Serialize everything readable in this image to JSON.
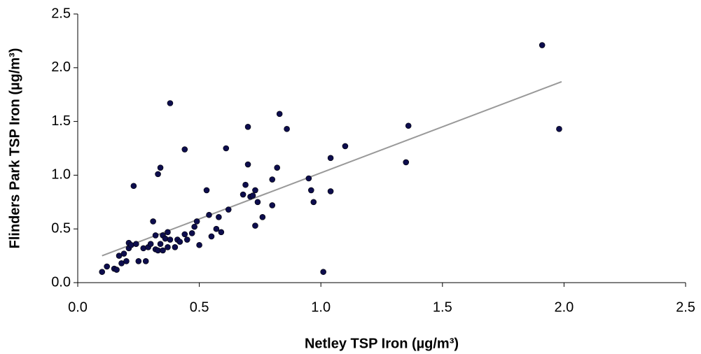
{
  "chart_data": {
    "type": "scatter",
    "x_label": "Netley TSP Iron (µg/m³)",
    "y_label": "Flinders Park TSP Iron (µg/m³)",
    "xlim": [
      0,
      2.5
    ],
    "ylim": [
      0,
      2.5
    ],
    "xticks": [
      {
        "value": 0,
        "label": "0.0"
      },
      0.5,
      {
        "value": 1,
        "label": "1.0"
      },
      1.5,
      {
        "value": 2,
        "label": "2.0"
      },
      2.5
    ],
    "yticks": [
      {
        "value": 0,
        "label": "0.0"
      },
      0.5,
      {
        "value": 1,
        "label": "1.0"
      },
      1.5,
      {
        "value": 2,
        "label": "2.0"
      },
      2.5
    ],
    "color": "#0d0d4d",
    "x": [
      0.1,
      0.12,
      0.15,
      0.16,
      0.17,
      0.18,
      0.19,
      0.2,
      0.21,
      0.21,
      0.22,
      0.23,
      0.24,
      0.25,
      0.27,
      0.28,
      0.29,
      0.3,
      0.31,
      0.32,
      0.32,
      0.33,
      0.33,
      0.34,
      0.34,
      0.35,
      0.35,
      0.36,
      0.37,
      0.37,
      0.38,
      0.38,
      0.4,
      0.41,
      0.42,
      0.44,
      0.44,
      0.45,
      0.47,
      0.48,
      0.49,
      0.5,
      0.53,
      0.54,
      0.55,
      0.57,
      0.58,
      0.59,
      0.61,
      0.62,
      0.68,
      0.69,
      0.7,
      0.7,
      0.71,
      0.72,
      0.73,
      0.73,
      0.74,
      0.76,
      0.8,
      0.8,
      0.82,
      0.83,
      0.86,
      0.95,
      0.96,
      0.97,
      1.01,
      1.04,
      1.04,
      1.1,
      1.35,
      1.36,
      1.91,
      1.98
    ],
    "values": [
      0.1,
      0.15,
      0.13,
      0.12,
      0.25,
      0.18,
      0.27,
      0.2,
      0.32,
      0.37,
      0.35,
      0.9,
      0.36,
      0.2,
      0.32,
      0.2,
      0.33,
      0.36,
      0.57,
      0.44,
      0.31,
      1.01,
      0.3,
      0.36,
      1.07,
      0.3,
      0.44,
      0.41,
      0.33,
      0.47,
      1.67,
      0.4,
      0.33,
      0.4,
      0.38,
      0.45,
      1.24,
      0.4,
      0.46,
      0.52,
      0.57,
      0.35,
      0.86,
      0.63,
      0.43,
      0.5,
      0.61,
      0.47,
      1.25,
      0.68,
      0.82,
      0.91,
      1.45,
      1.1,
      0.8,
      0.81,
      0.86,
      0.53,
      0.75,
      0.61,
      0.96,
      0.72,
      1.07,
      1.57,
      1.43,
      0.97,
      0.86,
      0.75,
      0.1,
      1.16,
      0.85,
      1.27,
      1.12,
      1.46,
      2.21,
      1.43
    ],
    "trendline": {
      "x": [
        0.1,
        1.99
      ],
      "y": [
        0.25,
        1.87
      ],
      "color": "#999999"
    }
  }
}
